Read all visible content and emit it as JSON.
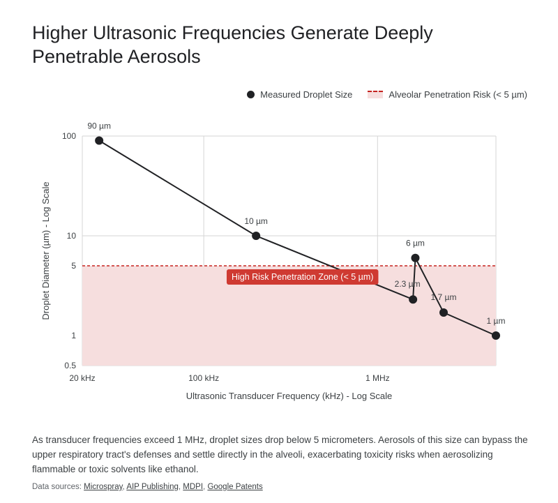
{
  "page": {
    "title": "Higher Ultrasonic Frequencies Generate Deeply Penetrable Aerosols",
    "description": "As transducer frequencies exceed 1 MHz, droplet sizes drop below 5 micrometers. Aerosols of this size can bypass the upper respiratory tract's defenses and settle directly in the alveoli, exacerbating toxicity risks when aerosolizing flammable or toxic solvents like ethanol.",
    "sources_label": "Data sources:",
    "sources": [
      "Microspray",
      "AIP Publishing",
      "MDPI",
      "Google Patents"
    ]
  },
  "colors": {
    "point": "#202124",
    "line": "#202124",
    "risk_line": "#c5221f",
    "risk_fill": "#f6dede",
    "annotation_bg": "#cf3a32",
    "grid": "#d5d5d5",
    "text": "#3c4043"
  },
  "chart_data": {
    "type": "line",
    "title": "Higher Ultrasonic Frequencies Generate Deeply Penetrable Aerosols",
    "xlabel": "Ultrasonic Transducer Frequency (kHz) - Log Scale",
    "ylabel": "Droplet Diameter (µm) - Log Scale",
    "x_scale": "log",
    "y_scale": "log",
    "xlim": [
      20,
      4800
    ],
    "ylim": [
      0.5,
      100
    ],
    "x_ticks": [
      {
        "value": 20,
        "label": "20 kHz"
      },
      {
        "value": 100,
        "label": "100 kHz"
      },
      {
        "value": 1000,
        "label": "1 MHz"
      }
    ],
    "y_ticks": [
      {
        "value": 100,
        "label": "100"
      },
      {
        "value": 10,
        "label": "10"
      },
      {
        "value": 5,
        "label": "5"
      },
      {
        "value": 1,
        "label": "1"
      },
      {
        "value": 0.5,
        "label": "0.5"
      }
    ],
    "grid": true,
    "legend_position": "top-right",
    "series": [
      {
        "name": "Measured Droplet Size",
        "points": [
          {
            "x": 25,
            "y": 90,
            "label": "90 µm"
          },
          {
            "x": 200,
            "y": 10,
            "label": "10 µm"
          },
          {
            "x": 1600,
            "y": 2.3,
            "label": "2.3 µm"
          },
          {
            "x": 1650,
            "y": 6,
            "label": "6 µm"
          },
          {
            "x": 2400,
            "y": 1.7,
            "label": "1.7 µm"
          },
          {
            "x": 4800,
            "y": 1,
            "label": "1 µm"
          }
        ]
      }
    ],
    "threshold": {
      "name": "Alveolar Penetration Risk (< 5 µm)",
      "y": 5,
      "annotation": "High Risk Penetration Zone (< 5 µm)",
      "annotation_x": 370
    }
  }
}
